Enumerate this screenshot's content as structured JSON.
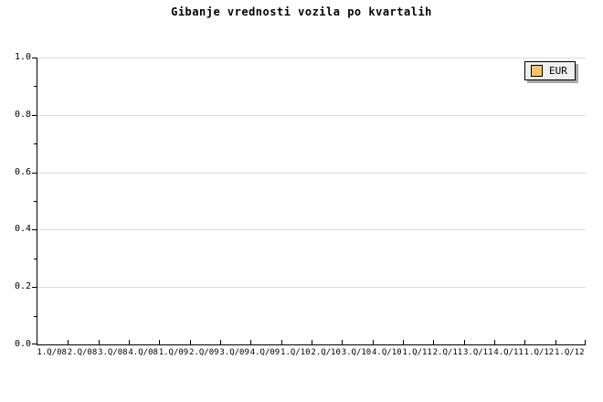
{
  "colors": {
    "series_eur": "#FBC56B",
    "gridline": "#DCDCDC",
    "axis": "#000000",
    "legend_background": "#EFEFEF",
    "legend_shadow": "#AAAAAA",
    "background": "#FFFFFF"
  },
  "legend": {
    "position": "top-right",
    "items": [
      {
        "label": "EUR",
        "swatch_color": "#FBC56B"
      }
    ]
  },
  "chart_data": {
    "type": "bar",
    "title": "Gibanje vrednosti vozila po kvartalih",
    "xlabel": "",
    "ylabel": "",
    "categories": [
      "1.Q/08",
      "2.Q/08",
      "3.Q/08",
      "4.Q/08",
      "1.Q/09",
      "2.Q/09",
      "3.Q/09",
      "4.Q/09",
      "1.Q/10",
      "2.Q/10",
      "3.Q/10",
      "4.Q/10",
      "1.Q/11",
      "2.Q/11",
      "3.Q/11",
      "4.Q/11",
      "1.Q/12",
      "1.Q/12"
    ],
    "series": [
      {
        "name": "EUR",
        "color": "#FBC56B",
        "values": []
      }
    ],
    "ylim": [
      0.0,
      1.0
    ],
    "y_tick_labels": [
      "1.0",
      "0.8",
      "0.6",
      "0.4",
      "0.2",
      "0.0"
    ],
    "y_major_step": 0.2,
    "y_minor_step": 0.1,
    "grid": "horizontal-major",
    "legend_position": "top-right"
  }
}
